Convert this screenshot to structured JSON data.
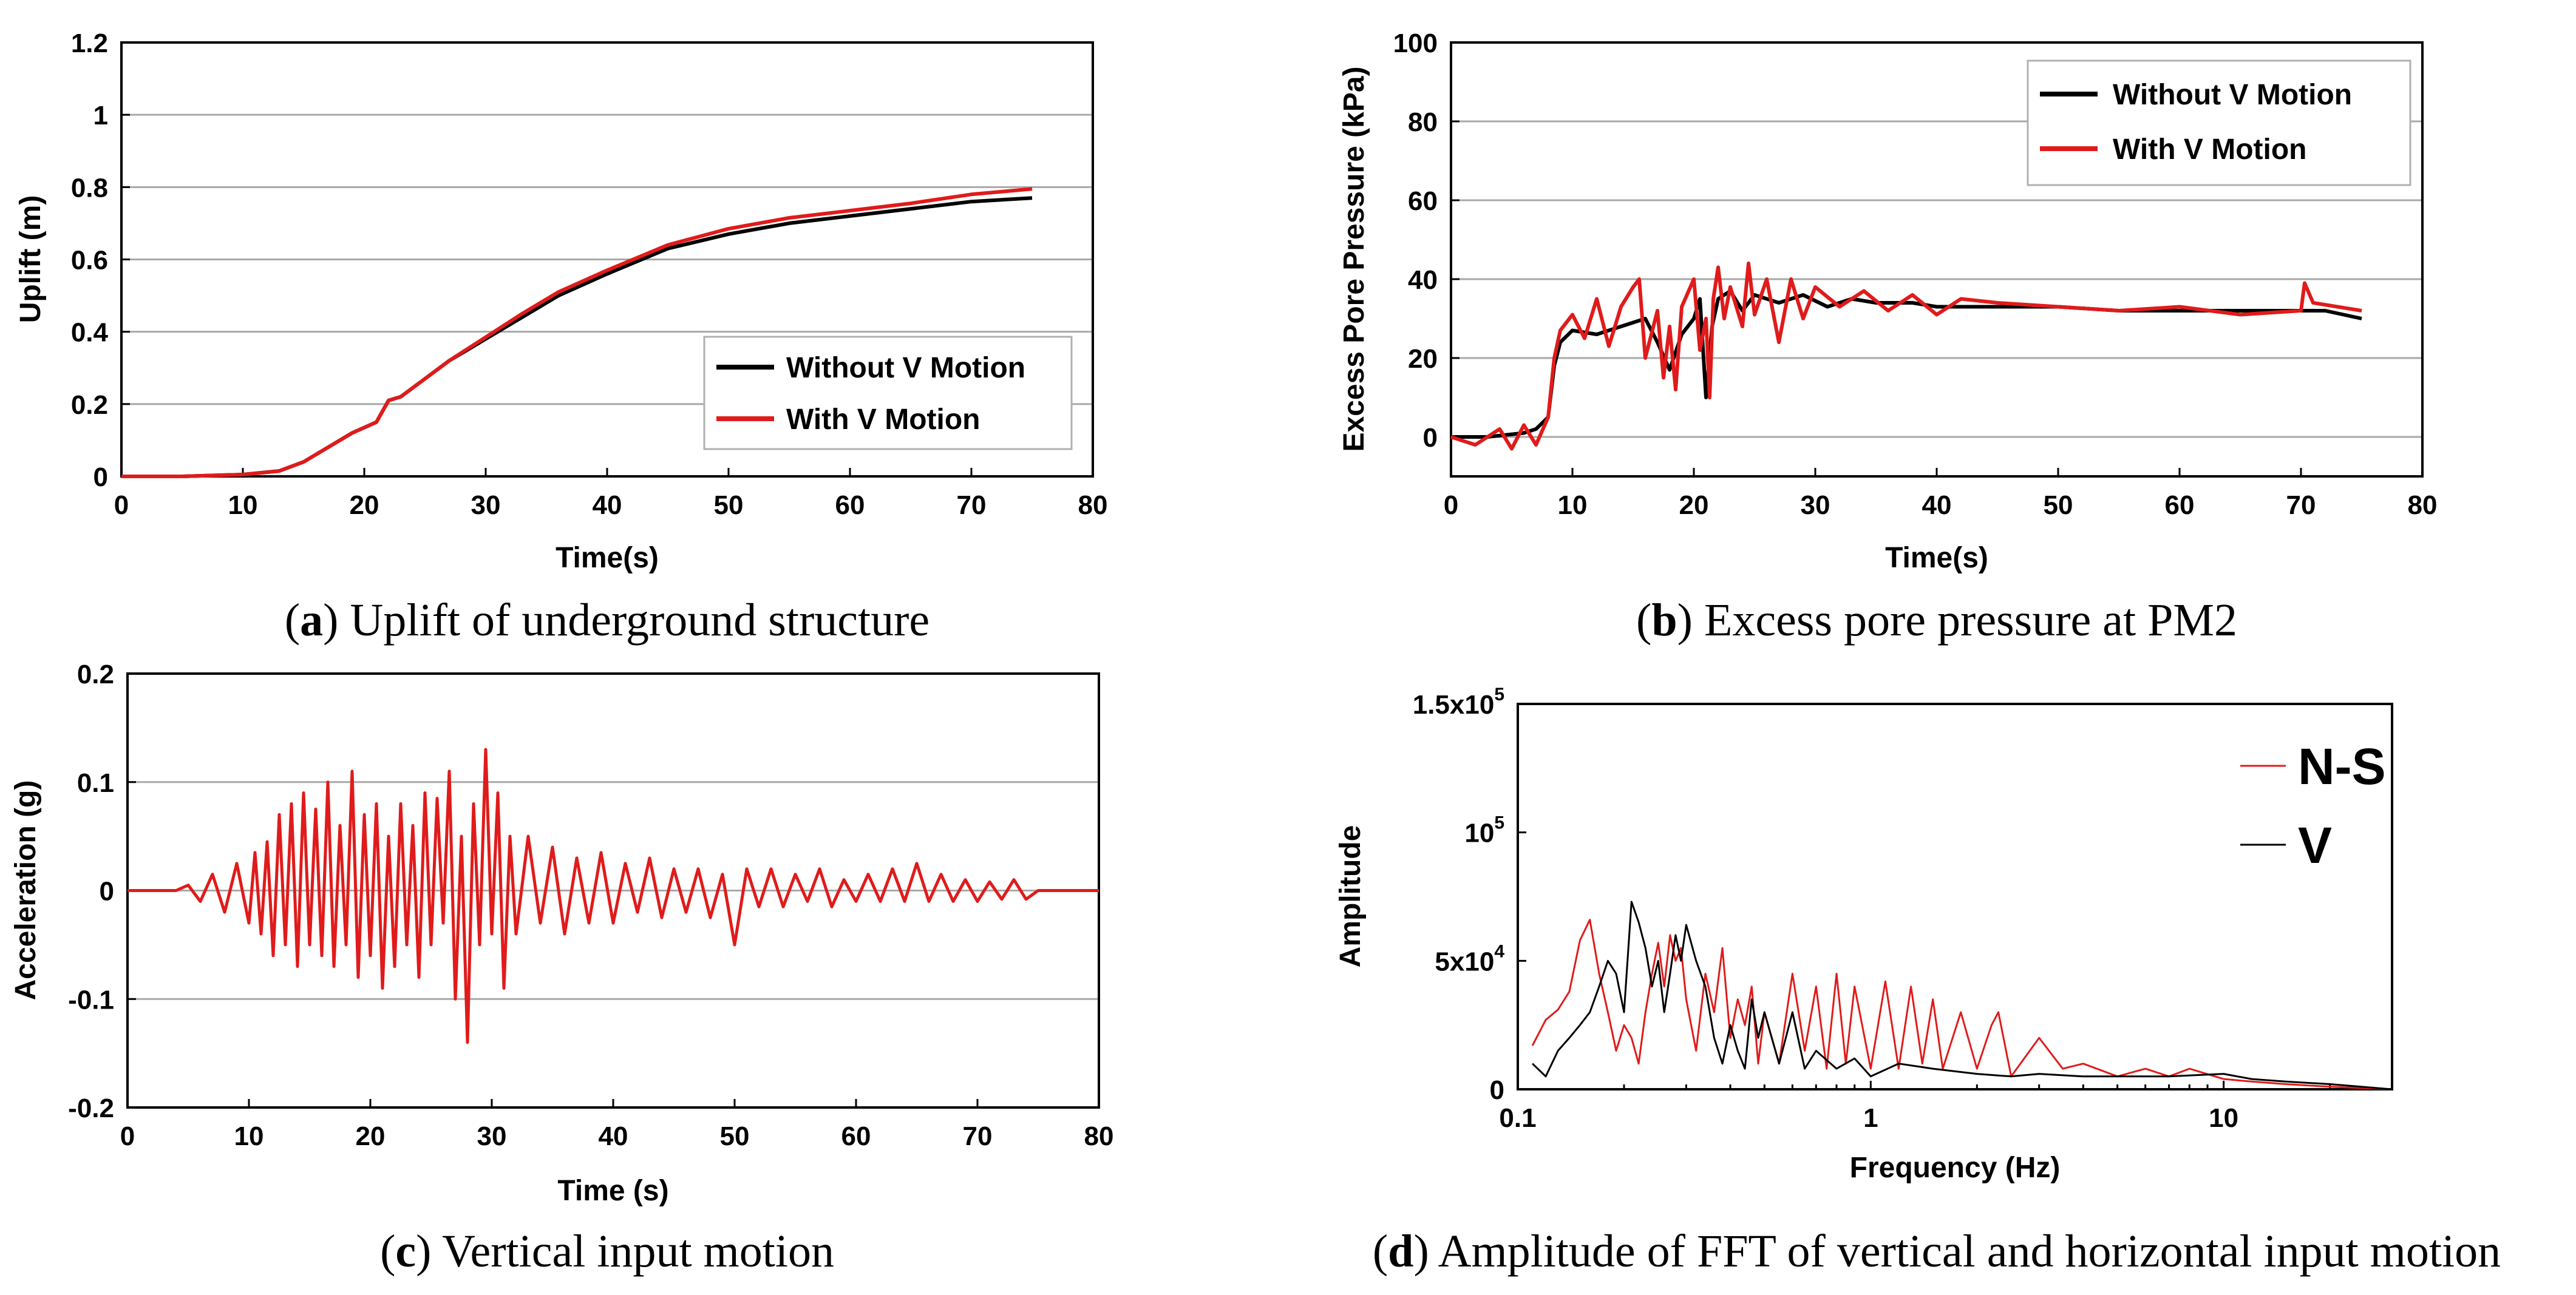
{
  "chart_data": [
    {
      "id": "a",
      "type": "line",
      "caption": {
        "letter": "a",
        "text": " Uplift of underground structure"
      },
      "xlabel": "Time(s)",
      "ylabel": "Uplift (m)",
      "xlim": [
        0,
        80
      ],
      "ylim": [
        0,
        1.2
      ],
      "xticks": [
        "0",
        "10",
        "20",
        "30",
        "40",
        "50",
        "60",
        "70",
        "80"
      ],
      "yticks": [
        "0",
        "0.2",
        "0.4",
        "0.6",
        "0.8",
        "1",
        "1.2"
      ],
      "legend": {
        "position": "lower-right",
        "entries": [
          "Without V Motion",
          "With V Motion"
        ]
      },
      "series": [
        {
          "name": "Without V Motion",
          "color": "#000000",
          "x": [
            0,
            5,
            10,
            13,
            15,
            17,
            19,
            21,
            22,
            23,
            25,
            27,
            30,
            33,
            36,
            40,
            45,
            50,
            55,
            60,
            65,
            70,
            75
          ],
          "y": [
            0,
            0,
            0.005,
            0.015,
            0.04,
            0.08,
            0.12,
            0.15,
            0.21,
            0.22,
            0.27,
            0.32,
            0.38,
            0.44,
            0.5,
            0.56,
            0.63,
            0.67,
            0.7,
            0.72,
            0.74,
            0.76,
            0.77
          ]
        },
        {
          "name": "With V Motion",
          "color": "#e01b1b",
          "x": [
            0,
            5,
            10,
            13,
            15,
            17,
            19,
            21,
            22,
            23,
            25,
            27,
            30,
            33,
            36,
            40,
            45,
            50,
            55,
            60,
            65,
            70,
            75
          ],
          "y": [
            0,
            0,
            0.005,
            0.015,
            0.04,
            0.08,
            0.12,
            0.15,
            0.21,
            0.22,
            0.27,
            0.32,
            0.385,
            0.45,
            0.51,
            0.57,
            0.64,
            0.685,
            0.715,
            0.735,
            0.755,
            0.78,
            0.795
          ]
        }
      ]
    },
    {
      "id": "b",
      "type": "line",
      "caption": {
        "letter": "b",
        "text": " Excess pore pressure at PM2"
      },
      "xlabel": "Time(s)",
      "ylabel": "Excess Pore Pressure (kPa)",
      "xlim": [
        0,
        80
      ],
      "ylim": [
        -10,
        100
      ],
      "xticks": [
        "0",
        "10",
        "20",
        "30",
        "40",
        "50",
        "60",
        "70",
        "80"
      ],
      "yticks": [
        "0",
        "20",
        "40",
        "60",
        "80",
        "100"
      ],
      "ytick_values": [
        0,
        20,
        40,
        60,
        80,
        100
      ],
      "legend": {
        "position": "top-right",
        "entries": [
          "Without V Motion",
          "With V Motion"
        ]
      },
      "series": [
        {
          "name": "Without V Motion",
          "color": "#000000",
          "x": [
            0,
            3,
            6,
            7,
            8,
            8.5,
            9,
            10,
            12,
            14,
            15,
            16,
            17,
            18,
            19,
            20,
            20.5,
            21,
            21.5,
            22,
            23,
            24,
            25,
            27,
            29,
            31,
            33,
            35,
            38,
            40,
            45,
            50,
            55,
            60,
            65,
            70,
            72,
            75
          ],
          "y": [
            0,
            0,
            1,
            2,
            5,
            18,
            24,
            27,
            26,
            28,
            29,
            30,
            24,
            17,
            26,
            30,
            35,
            10,
            28,
            35,
            37,
            32,
            36,
            34,
            36,
            33,
            35,
            34,
            34,
            33,
            33,
            33,
            32,
            32,
            32,
            32,
            32,
            30
          ]
        },
        {
          "name": "With V Motion",
          "color": "#e01b1b",
          "x": [
            0,
            2,
            4,
            5,
            6,
            7,
            8,
            8.5,
            9,
            10,
            11,
            12,
            13,
            14,
            15,
            15.5,
            16,
            17,
            17.5,
            18,
            18.5,
            19,
            20,
            20.5,
            21,
            21.3,
            21.6,
            22,
            22.5,
            23,
            24,
            24.5,
            25,
            26,
            27,
            28,
            29,
            30,
            32,
            34,
            36,
            38,
            40,
            42,
            45,
            50,
            55,
            60,
            65,
            70,
            70.3,
            71,
            75
          ],
          "y": [
            0,
            -2,
            2,
            -3,
            3,
            -2,
            5,
            20,
            27,
            31,
            25,
            35,
            23,
            33,
            38,
            40,
            20,
            32,
            15,
            28,
            12,
            33,
            40,
            22,
            30,
            10,
            35,
            43,
            30,
            38,
            28,
            44,
            31,
            40,
            24,
            40,
            30,
            38,
            33,
            37,
            32,
            36,
            31,
            35,
            34,
            33,
            32,
            33,
            31,
            32,
            39,
            34,
            32
          ]
        }
      ]
    },
    {
      "id": "c",
      "type": "line",
      "caption": {
        "letter": "c",
        "text": " Vertical input motion"
      },
      "xlabel": "Time (s)",
      "ylabel": "Acceleration (g)",
      "xlim": [
        0,
        80
      ],
      "ylim": [
        -0.2,
        0.2
      ],
      "xticks": [
        "0",
        "10",
        "20",
        "30",
        "40",
        "50",
        "60",
        "70",
        "80"
      ],
      "yticks": [
        "-0.2",
        "-0.1",
        "0",
        "0.1",
        "0.2"
      ],
      "ytick_values": [
        -0.2,
        -0.1,
        0,
        0.1,
        0.2
      ],
      "series": [
        {
          "name": "Vertical",
          "color": "#e01b1b",
          "x": [
            0,
            4,
            5,
            6,
            7,
            8,
            9,
            10,
            10.5,
            11,
            11.5,
            12,
            12.5,
            13,
            13.5,
            14,
            14.5,
            15,
            15.5,
            16,
            16.5,
            17,
            17.5,
            18,
            18.5,
            19,
            19.5,
            20,
            20.5,
            21,
            21.5,
            22,
            22.5,
            23,
            23.5,
            24,
            24.5,
            25,
            25.5,
            26,
            26.5,
            27,
            27.5,
            28,
            28.5,
            29,
            29.5,
            30,
            30.5,
            31,
            31.5,
            32,
            33,
            34,
            35,
            36,
            37,
            38,
            39,
            40,
            41,
            42,
            43,
            44,
            45,
            46,
            47,
            48,
            49,
            50,
            51,
            52,
            53,
            54,
            55,
            56,
            57,
            58,
            59,
            60,
            61,
            62,
            63,
            64,
            65,
            66,
            67,
            68,
            69,
            70,
            71,
            72,
            73,
            74,
            75,
            80
          ],
          "y": [
            0,
            0,
            0.005,
            -0.01,
            0.015,
            -0.02,
            0.025,
            -0.03,
            0.035,
            -0.04,
            0.045,
            -0.06,
            0.07,
            -0.05,
            0.08,
            -0.07,
            0.09,
            -0.05,
            0.075,
            -0.06,
            0.1,
            -0.07,
            0.06,
            -0.05,
            0.11,
            -0.08,
            0.07,
            -0.06,
            0.08,
            -0.09,
            0.05,
            -0.07,
            0.08,
            -0.05,
            0.06,
            -0.08,
            0.09,
            -0.05,
            0.085,
            -0.03,
            0.11,
            -0.1,
            0.05,
            -0.14,
            0.08,
            -0.05,
            0.13,
            -0.04,
            0.09,
            -0.09,
            0.05,
            -0.04,
            0.05,
            -0.03,
            0.04,
            -0.04,
            0.03,
            -0.03,
            0.035,
            -0.03,
            0.025,
            -0.02,
            0.03,
            -0.025,
            0.02,
            -0.02,
            0.02,
            -0.025,
            0.015,
            -0.05,
            0.02,
            -0.015,
            0.02,
            -0.015,
            0.015,
            -0.01,
            0.02,
            -0.015,
            0.01,
            -0.01,
            0.015,
            -0.01,
            0.02,
            -0.01,
            0.025,
            -0.01,
            0.015,
            -0.01,
            0.01,
            -0.01,
            0.008,
            -0.008,
            0.01,
            -0.008,
            0,
            0
          ]
        }
      ]
    },
    {
      "id": "d",
      "type": "line",
      "caption": {
        "letter": "d",
        "text": " Amplitude of FFT of vertical and horizontal input motion"
      },
      "xlabel": "Frequency (Hz)",
      "ylabel": "Amplitude",
      "xscale": "log",
      "xlim": [
        0.1,
        30
      ],
      "ylim": [
        0,
        150000
      ],
      "xticks": [
        "0.1",
        "1",
        "10"
      ],
      "xtick_values": [
        0.1,
        1,
        10
      ],
      "yticks": [
        {
          "value": 0,
          "base": "0",
          "exp": ""
        },
        {
          "value": 50000,
          "base": "5x10",
          "exp": "4"
        },
        {
          "value": 100000,
          "base": "10",
          "exp": "5"
        },
        {
          "value": 150000,
          "base": "1.5x10",
          "exp": "5"
        }
      ],
      "legend": {
        "position": "top-right",
        "entries": [
          "N-S",
          "V"
        ]
      },
      "series": [
        {
          "name": "N-S",
          "color": "#e01b1b",
          "x": [
            0.11,
            0.12,
            0.13,
            0.14,
            0.15,
            0.16,
            0.17,
            0.18,
            0.19,
            0.2,
            0.21,
            0.22,
            0.23,
            0.24,
            0.25,
            0.26,
            0.27,
            0.28,
            0.29,
            0.3,
            0.32,
            0.34,
            0.36,
            0.38,
            0.4,
            0.42,
            0.44,
            0.46,
            0.48,
            0.5,
            0.55,
            0.6,
            0.65,
            0.7,
            0.75,
            0.8,
            0.85,
            0.9,
            1.0,
            1.1,
            1.2,
            1.3,
            1.4,
            1.5,
            1.6,
            1.8,
            2.0,
            2.2,
            2.3,
            2.5,
            3.0,
            3.5,
            4.0,
            5.0,
            6.0,
            7.0,
            8.0,
            10.0,
            12.0,
            15.0,
            20.0,
            30.0
          ],
          "y": [
            17000,
            27000,
            31000,
            38000,
            58000,
            66000,
            45000,
            30000,
            15000,
            25000,
            20000,
            10000,
            30000,
            45000,
            57000,
            40000,
            60000,
            50000,
            55000,
            35000,
            15000,
            45000,
            30000,
            55000,
            20000,
            35000,
            25000,
            40000,
            10000,
            30000,
            10000,
            45000,
            15000,
            40000,
            8000,
            45000,
            10000,
            40000,
            8000,
            42000,
            8000,
            40000,
            10000,
            35000,
            8000,
            30000,
            8000,
            25000,
            30000,
            5000,
            20000,
            8000,
            10000,
            5000,
            8000,
            5000,
            8000,
            4000,
            3000,
            2000,
            1000,
            0
          ]
        },
        {
          "name": "V",
          "color": "#000000",
          "x": [
            0.11,
            0.12,
            0.13,
            0.14,
            0.15,
            0.16,
            0.17,
            0.18,
            0.19,
            0.2,
            0.21,
            0.22,
            0.23,
            0.24,
            0.25,
            0.26,
            0.27,
            0.28,
            0.29,
            0.3,
            0.32,
            0.34,
            0.36,
            0.38,
            0.4,
            0.42,
            0.44,
            0.46,
            0.48,
            0.5,
            0.55,
            0.6,
            0.65,
            0.7,
            0.8,
            0.9,
            1.0,
            1.2,
            1.5,
            2.0,
            2.5,
            3.0,
            4.0,
            5.0,
            7.0,
            10.0,
            12.0,
            15.0,
            20.0,
            30.0
          ],
          "y": [
            10000,
            5000,
            15000,
            20000,
            25000,
            30000,
            40000,
            50000,
            45000,
            30000,
            73000,
            65000,
            55000,
            40000,
            50000,
            30000,
            45000,
            60000,
            50000,
            64000,
            50000,
            40000,
            20000,
            10000,
            25000,
            15000,
            8000,
            35000,
            20000,
            30000,
            10000,
            30000,
            8000,
            15000,
            8000,
            12000,
            5000,
            10000,
            8000,
            6000,
            5000,
            6000,
            5000,
            5000,
            5000,
            6000,
            4000,
            3000,
            2000,
            0
          ]
        }
      ]
    }
  ]
}
